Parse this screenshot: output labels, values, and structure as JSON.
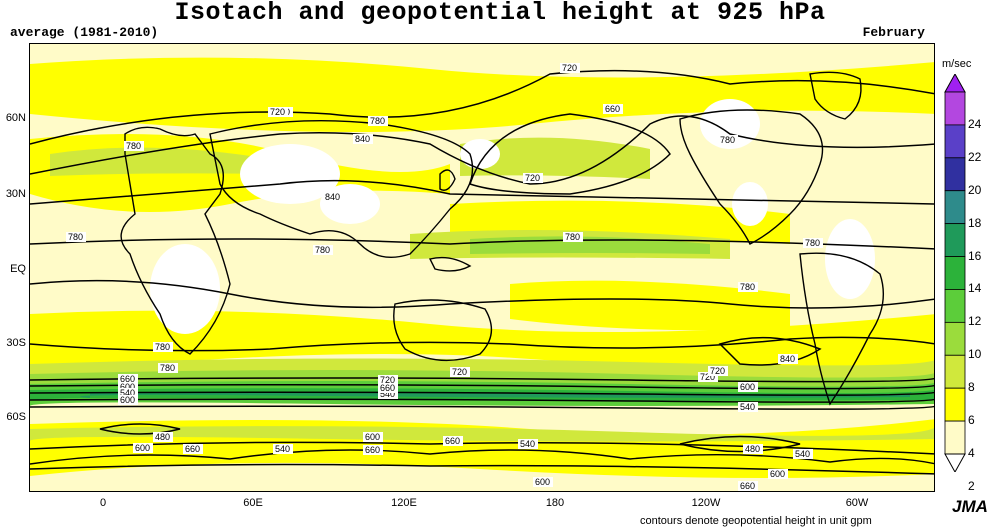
{
  "title": "Isotach and geopotential height at 925 hPa",
  "subtitle_left": "average (1981-2010)",
  "subtitle_right": "February",
  "lat_ticks": [
    "60N",
    "30N",
    "EQ",
    "30S",
    "60S"
  ],
  "lon_ticks": [
    "0",
    "60E",
    "120E",
    "180",
    "120W",
    "60W"
  ],
  "colorbar": {
    "unit": "m/sec",
    "ticks": [
      "24",
      "22",
      "20",
      "18",
      "16",
      "14",
      "12",
      "10",
      "8",
      "6",
      "4",
      "2"
    ],
    "colors": [
      "#a020f0",
      "#b347e0",
      "#5a40c8",
      "#3030a0",
      "#2e8b8b",
      "#1f9a5a",
      "#2cb23a",
      "#5ccd3a",
      "#9bdc3c",
      "#d0e83c",
      "#ffff00",
      "#fffbc8",
      "#ffffff"
    ]
  },
  "contour_labels": [
    "720",
    "660",
    "780",
    "720",
    "840",
    "780",
    "780",
    "720",
    "780",
    "840",
    "780",
    "780",
    "780",
    "780",
    "780",
    "780",
    "780",
    "840",
    "720",
    "720",
    "660",
    "600",
    "540",
    "600",
    "540",
    "720",
    "660",
    "600",
    "540",
    "480",
    "600",
    "660",
    "540",
    "600",
    "660",
    "540",
    "480",
    "540",
    "600",
    "660",
    "600",
    "660",
    "720"
  ],
  "chart_data": {
    "type": "map",
    "title": "Isotach and geopotential height at 925 hPa",
    "legend_unit": "m/sec",
    "legend_values": [
      2,
      4,
      6,
      8,
      10,
      12,
      14,
      16,
      18,
      20,
      22,
      24
    ],
    "contour_unit_note": "contours denote geopotential height in unit gpm"
  },
  "logo": "JMA",
  "footnote": "contours denote geopotential height in unit gpm"
}
